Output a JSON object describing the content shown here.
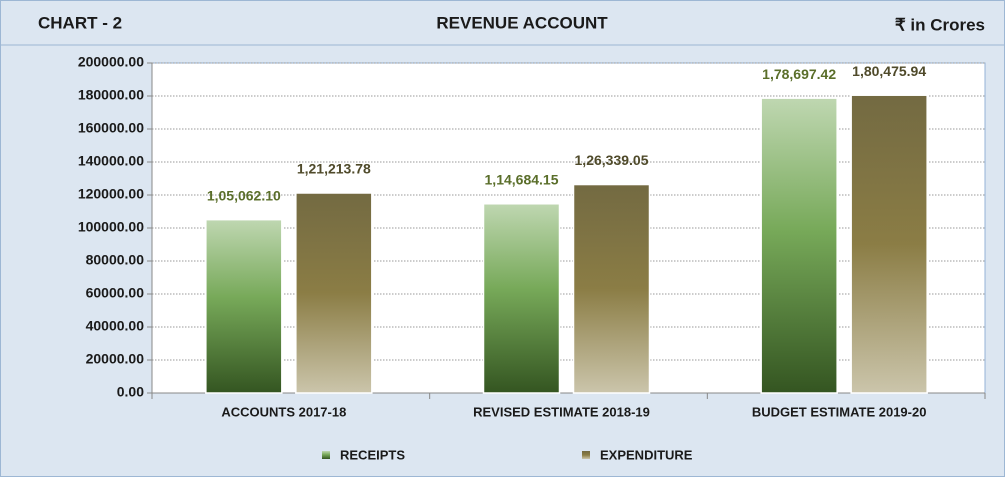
{
  "chart_data": {
    "type": "bar",
    "chart_number": "CHART - 2",
    "title": "REVENUE ACCOUNT",
    "unit": "₹ in Crores",
    "categories": [
      "ACCOUNTS 2017-18",
      "REVISED ESTIMATE 2018-19",
      "BUDGET ESTIMATE 2019-20"
    ],
    "series": [
      {
        "name": "RECEIPTS",
        "color": "#5f9a3c",
        "label_color": "#5a6e2a",
        "values": [
          105062.1,
          114684.15,
          178697.42
        ],
        "value_labels": [
          "1,05,062.10",
          "1,14,684.15",
          "1,78,697.42"
        ]
      },
      {
        "name": "EXPENDITURE",
        "color": "#8b7d45",
        "label_color": "#4f4a2a",
        "values": [
          121213.78,
          126339.05,
          180475.94
        ],
        "value_labels": [
          "1,21,213.78",
          "1,26,339.05",
          "1,80,475.94"
        ]
      }
    ],
    "ylim": [
      0,
      200000
    ],
    "yticks": [
      {
        "value": 0,
        "label": "0.00"
      },
      {
        "value": 20000,
        "label": "20000.00"
      },
      {
        "value": 40000,
        "label": "40000.00"
      },
      {
        "value": 60000,
        "label": "60000.00"
      },
      {
        "value": 80000,
        "label": "80000.00"
      },
      {
        "value": 100000,
        "label": "100000.00"
      },
      {
        "value": 120000,
        "label": "120000.00"
      },
      {
        "value": 140000,
        "label": "140000.00"
      },
      {
        "value": 160000,
        "label": "160000.00"
      },
      {
        "value": 180000,
        "label": "180000.00"
      },
      {
        "value": 200000,
        "label": "200000.00"
      }
    ],
    "grid": true,
    "legend": "bottom"
  }
}
